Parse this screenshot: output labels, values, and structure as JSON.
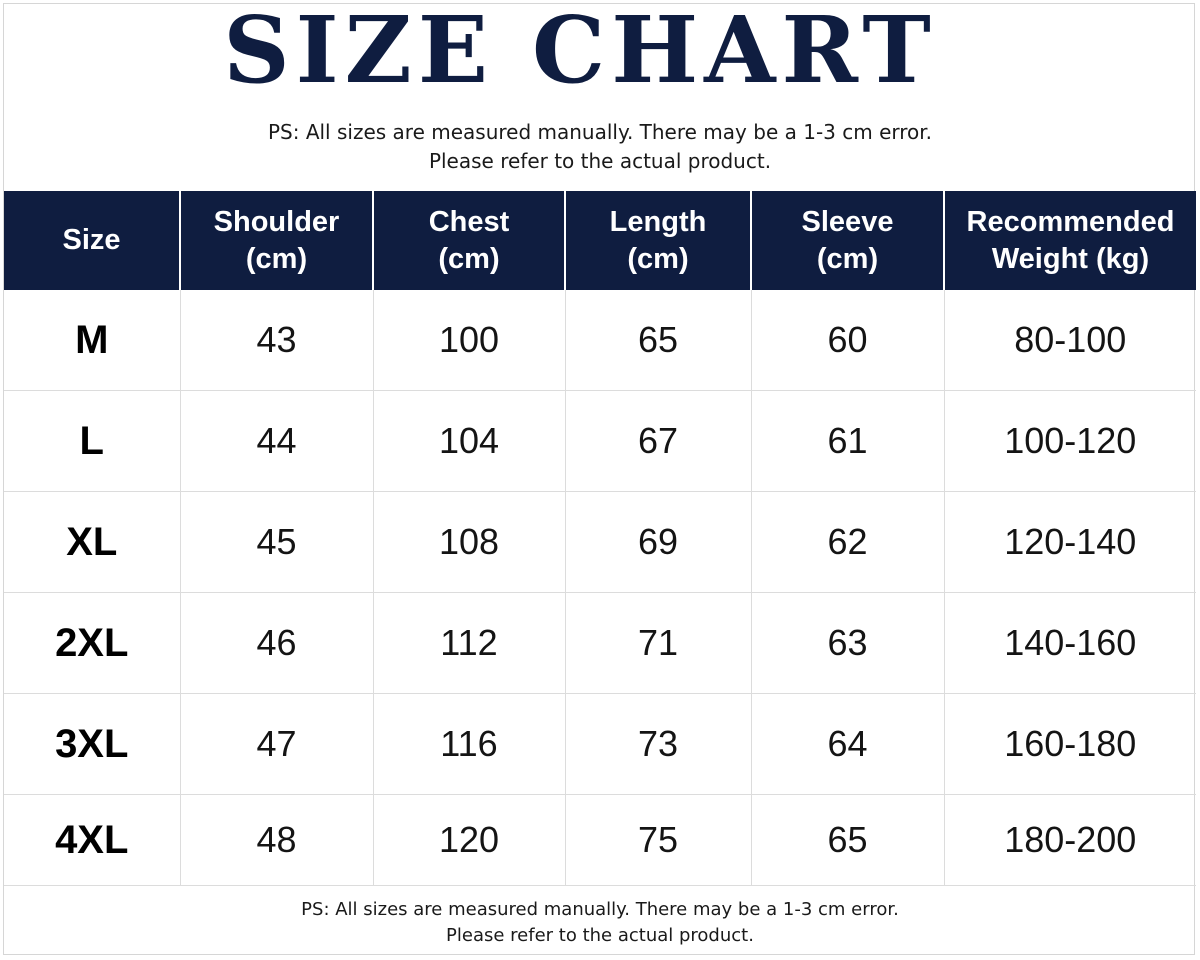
{
  "title": "SIZE CHART",
  "note": {
    "line1": "PS: All sizes are measured manually. There may be a 1-3 cm error.",
    "line2": "Please refer to the actual product."
  },
  "table": {
    "headers": [
      {
        "line1": "Size",
        "line2": ""
      },
      {
        "line1": "Shoulder",
        "line2": "(cm)"
      },
      {
        "line1": "Chest",
        "line2": "(cm)"
      },
      {
        "line1": "Length",
        "line2": "(cm)"
      },
      {
        "line1": "Sleeve",
        "line2": "(cm)"
      },
      {
        "line1": "Recommended",
        "line2": "Weight (kg)"
      }
    ],
    "rows": [
      [
        "M",
        "43",
        "100",
        "65",
        "60",
        "80-100"
      ],
      [
        "L",
        "44",
        "104",
        "67",
        "61",
        "100-120"
      ],
      [
        "XL",
        "45",
        "108",
        "69",
        "62",
        "120-140"
      ],
      [
        "2XL",
        "46",
        "112",
        "71",
        "63",
        "140-160"
      ],
      [
        "3XL",
        "47",
        "116",
        "73",
        "64",
        "160-180"
      ],
      [
        "4XL",
        "48",
        "120",
        "75",
        "65",
        "180-200"
      ]
    ]
  },
  "colors": {
    "header_bg": "#0f1d40",
    "title": "#0f1d40"
  }
}
